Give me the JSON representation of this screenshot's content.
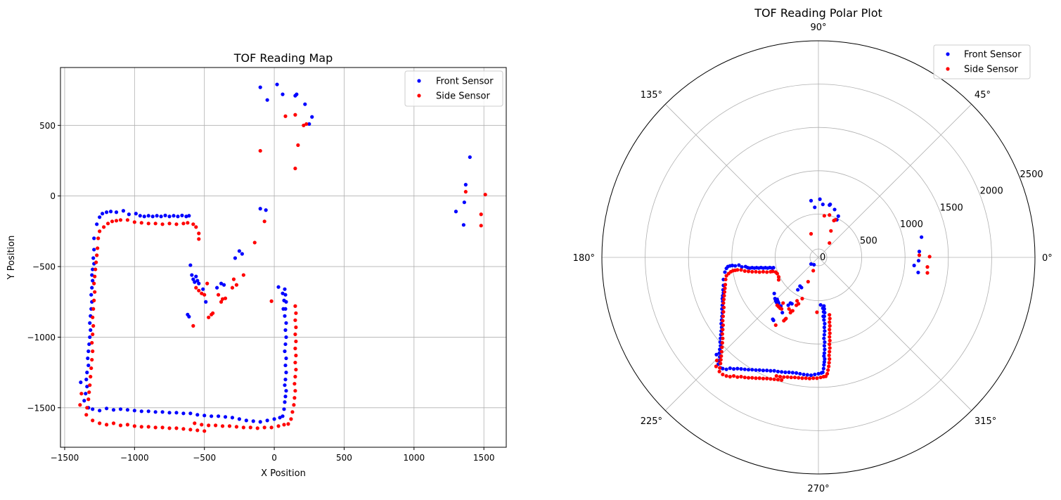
{
  "chart_data": [
    {
      "type": "scatter",
      "title": "TOF Reading Map",
      "xlabel": "X Position",
      "ylabel": "Y Position",
      "xlim": [
        -1530,
        1660
      ],
      "ylim": [
        -1780,
        910
      ],
      "xticks": [
        -1500,
        -1000,
        -500,
        0,
        500,
        1000,
        1500
      ],
      "yticks": [
        -1500,
        -1000,
        -500,
        0,
        500
      ],
      "grid": true,
      "legend_position": "upper-right",
      "series": [
        {
          "name": "Front Sensor",
          "color": "#0000ff",
          "points": [
            [
              -1290,
              -300
            ],
            [
              -1270,
              -200
            ],
            [
              -1250,
              -150
            ],
            [
              -1230,
              -125
            ],
            [
              -1200,
              -115
            ],
            [
              -1170,
              -110
            ],
            [
              -1130,
              -115
            ],
            [
              -1080,
              -105
            ],
            [
              -1040,
              -130
            ],
            [
              -990,
              -125
            ],
            [
              -960,
              -140
            ],
            [
              -930,
              -145
            ],
            [
              -900,
              -140
            ],
            [
              -870,
              -145
            ],
            [
              -840,
              -140
            ],
            [
              -810,
              -145
            ],
            [
              -780,
              -138
            ],
            [
              -750,
              -145
            ],
            [
              -720,
              -140
            ],
            [
              -690,
              -145
            ],
            [
              -660,
              -138
            ],
            [
              -630,
              -145
            ],
            [
              -610,
              -140
            ],
            [
              -1290,
              -380
            ],
            [
              -1295,
              -440
            ],
            [
              -1290,
              -480
            ],
            [
              -1300,
              -520
            ],
            [
              -1305,
              -560
            ],
            [
              -1300,
              -600
            ],
            [
              -1305,
              -650
            ],
            [
              -1310,
              -700
            ],
            [
              -1305,
              -750
            ],
            [
              -1310,
              -800
            ],
            [
              -1315,
              -850
            ],
            [
              -1320,
              -900
            ],
            [
              -1315,
              -950
            ],
            [
              -1320,
              -1000
            ],
            [
              -1325,
              -1050
            ],
            [
              -1330,
              -1100
            ],
            [
              -1335,
              -1150
            ],
            [
              -1330,
              -1200
            ],
            [
              -1340,
              -1250
            ],
            [
              -1345,
              -1300
            ],
            [
              -1340,
              -1350
            ],
            [
              -1350,
              -1400
            ],
            [
              -1360,
              -1450
            ],
            [
              -1385,
              -1320
            ],
            [
              -1330,
              -1500
            ],
            [
              -1300,
              -1510
            ],
            [
              -1250,
              -1520
            ],
            [
              -1200,
              -1505
            ],
            [
              -1150,
              -1515
            ],
            [
              -1100,
              -1510
            ],
            [
              -1050,
              -1515
            ],
            [
              -1000,
              -1520
            ],
            [
              -950,
              -1525
            ],
            [
              -900,
              -1525
            ],
            [
              -850,
              -1530
            ],
            [
              -800,
              -1530
            ],
            [
              -750,
              -1535
            ],
            [
              -700,
              -1535
            ],
            [
              -650,
              -1540
            ],
            [
              -600,
              -1540
            ],
            [
              -550,
              -1550
            ],
            [
              -500,
              -1555
            ],
            [
              -450,
              -1560
            ],
            [
              -400,
              -1560
            ],
            [
              -350,
              -1565
            ],
            [
              -300,
              -1570
            ],
            [
              -250,
              -1580
            ],
            [
              -200,
              -1590
            ],
            [
              -150,
              -1595
            ],
            [
              -100,
              -1600
            ],
            [
              -50,
              -1590
            ],
            [
              0,
              -1580
            ],
            [
              40,
              -1570
            ],
            [
              60,
              -1560
            ],
            [
              70,
              -1510
            ],
            [
              75,
              -1460
            ],
            [
              80,
              -1420
            ],
            [
              85,
              -1380
            ],
            [
              75,
              -1340
            ],
            [
              80,
              -1300
            ],
            [
              85,
              -1250
            ],
            [
              80,
              -1200
            ],
            [
              85,
              -1150
            ],
            [
              75,
              -1100
            ],
            [
              80,
              -1050
            ],
            [
              85,
              -1000
            ],
            [
              80,
              -950
            ],
            [
              85,
              -900
            ],
            [
              75,
              -850
            ],
            [
              80,
              -800
            ],
            [
              85,
              -750
            ],
            [
              80,
              -700
            ],
            [
              75,
              -660
            ],
            [
              30,
              -645
            ],
            [
              60,
              -690
            ],
            [
              70,
              -740
            ],
            [
              65,
              -800
            ],
            [
              -600,
              -490
            ],
            [
              -590,
              -560
            ],
            [
              -580,
              -590
            ],
            [
              -570,
              -610
            ],
            [
              -560,
              -570
            ],
            [
              -550,
              -600
            ],
            [
              -540,
              -620
            ],
            [
              -510,
              -660
            ],
            [
              -490,
              -750
            ],
            [
              -410,
              -650
            ],
            [
              -380,
              -620
            ],
            [
              -360,
              -630
            ],
            [
              -620,
              -840
            ],
            [
              -610,
              -855
            ],
            [
              -280,
              -440
            ],
            [
              -250,
              -390
            ],
            [
              -230,
              -410
            ],
            [
              -100,
              -90
            ],
            [
              -60,
              -100
            ],
            [
              -100,
              770
            ],
            [
              -50,
              680
            ],
            [
              20,
              790
            ],
            [
              60,
              720
            ],
            [
              150,
              710
            ],
            [
              160,
              720
            ],
            [
              220,
              650
            ],
            [
              250,
              510
            ],
            [
              270,
              560
            ],
            [
              1300,
              -110
            ],
            [
              1360,
              -45
            ],
            [
              1370,
              80
            ],
            [
              1400,
              275
            ],
            [
              1355,
              -205
            ]
          ]
        },
        {
          "name": "Side Sensor",
          "color": "#ff0000",
          "points": [
            [
              -1250,
              -250
            ],
            [
              -1220,
              -220
            ],
            [
              -1190,
              -195
            ],
            [
              -1160,
              -180
            ],
            [
              -1130,
              -175
            ],
            [
              -1100,
              -170
            ],
            [
              -1050,
              -170
            ],
            [
              -1000,
              -185
            ],
            [
              -950,
              -190
            ],
            [
              -900,
              -195
            ],
            [
              -850,
              -195
            ],
            [
              -800,
              -200
            ],
            [
              -750,
              -195
            ],
            [
              -700,
              -200
            ],
            [
              -650,
              -195
            ],
            [
              -620,
              -190
            ],
            [
              -580,
              -200
            ],
            [
              -560,
              -220
            ],
            [
              -540,
              -265
            ],
            [
              -540,
              -305
            ],
            [
              -1260,
              -300
            ],
            [
              -1265,
              -370
            ],
            [
              -1270,
              -420
            ],
            [
              -1275,
              -470
            ],
            [
              -1280,
              -520
            ],
            [
              -1285,
              -570
            ],
            [
              -1290,
              -620
            ],
            [
              -1285,
              -680
            ],
            [
              -1290,
              -740
            ],
            [
              -1295,
              -800
            ],
            [
              -1300,
              -860
            ],
            [
              -1295,
              -920
            ],
            [
              -1300,
              -980
            ],
            [
              -1305,
              -1040
            ],
            [
              -1300,
              -1100
            ],
            [
              -1305,
              -1160
            ],
            [
              -1310,
              -1220
            ],
            [
              -1315,
              -1280
            ],
            [
              -1320,
              -1340
            ],
            [
              -1325,
              -1390
            ],
            [
              -1330,
              -1440
            ],
            [
              -1340,
              -1500
            ],
            [
              -1345,
              -1550
            ],
            [
              -1380,
              -1400
            ],
            [
              -1390,
              -1480
            ],
            [
              -1300,
              -1590
            ],
            [
              -1250,
              -1610
            ],
            [
              -1200,
              -1620
            ],
            [
              -1150,
              -1610
            ],
            [
              -1100,
              -1625
            ],
            [
              -1050,
              -1620
            ],
            [
              -1000,
              -1630
            ],
            [
              -950,
              -1635
            ],
            [
              -900,
              -1635
            ],
            [
              -850,
              -1640
            ],
            [
              -800,
              -1640
            ],
            [
              -750,
              -1645
            ],
            [
              -700,
              -1645
            ],
            [
              -650,
              -1650
            ],
            [
              -600,
              -1655
            ],
            [
              -550,
              -1660
            ],
            [
              -500,
              -1665
            ],
            [
              -570,
              -1610
            ],
            [
              -520,
              -1620
            ],
            [
              -470,
              -1625
            ],
            [
              -420,
              -1625
            ],
            [
              -370,
              -1630
            ],
            [
              -320,
              -1630
            ],
            [
              -270,
              -1635
            ],
            [
              -220,
              -1640
            ],
            [
              -170,
              -1640
            ],
            [
              -120,
              -1645
            ],
            [
              -70,
              -1640
            ],
            [
              -20,
              -1640
            ],
            [
              30,
              -1630
            ],
            [
              70,
              -1620
            ],
            [
              100,
              -1615
            ],
            [
              120,
              -1580
            ],
            [
              130,
              -1530
            ],
            [
              140,
              -1480
            ],
            [
              145,
              -1430
            ],
            [
              150,
              -1380
            ],
            [
              145,
              -1330
            ],
            [
              150,
              -1280
            ],
            [
              155,
              -1230
            ],
            [
              150,
              -1180
            ],
            [
              155,
              -1130
            ],
            [
              150,
              -1080
            ],
            [
              155,
              -1030
            ],
            [
              150,
              -980
            ],
            [
              155,
              -930
            ],
            [
              150,
              -880
            ],
            [
              155,
              -830
            ],
            [
              150,
              -780
            ],
            [
              -560,
              -650
            ],
            [
              -540,
              -670
            ],
            [
              -520,
              -690
            ],
            [
              -500,
              -700
            ],
            [
              -480,
              -620
            ],
            [
              -470,
              -860
            ],
            [
              -450,
              -840
            ],
            [
              -440,
              -830
            ],
            [
              -400,
              -700
            ],
            [
              -380,
              -750
            ],
            [
              -370,
              -730
            ],
            [
              -350,
              -725
            ],
            [
              -300,
              -650
            ],
            [
              -290,
              -590
            ],
            [
              -270,
              -630
            ],
            [
              -220,
              -560
            ],
            [
              -140,
              -330
            ],
            [
              -70,
              -180
            ],
            [
              -20,
              -745
            ],
            [
              -580,
              -920
            ],
            [
              -100,
              320
            ],
            [
              80,
              565
            ],
            [
              150,
              195
            ],
            [
              150,
              575
            ],
            [
              170,
              360
            ],
            [
              210,
              500
            ],
            [
              230,
              510
            ],
            [
              1370,
              30
            ],
            [
              1480,
              -130
            ],
            [
              1480,
              -210
            ],
            [
              1510,
              10
            ]
          ]
        }
      ]
    },
    {
      "type": "scatter",
      "subtype": "polar",
      "title": "TOF Reading Polar Plot",
      "rlim": [
        0,
        2500
      ],
      "rticks": [
        0,
        500,
        1000,
        1500,
        2000,
        2500
      ],
      "theta_ticks": [
        "0°",
        "45°",
        "90°",
        "135°",
        "180°",
        "225°",
        "270°",
        "315°"
      ],
      "grid": true,
      "legend_position": "upper-right",
      "series": [
        {
          "name": "Front Sensor",
          "transform": "same readings as map"
        },
        {
          "name": "Side Sensor",
          "transform": "same readings as map"
        }
      ]
    }
  ]
}
